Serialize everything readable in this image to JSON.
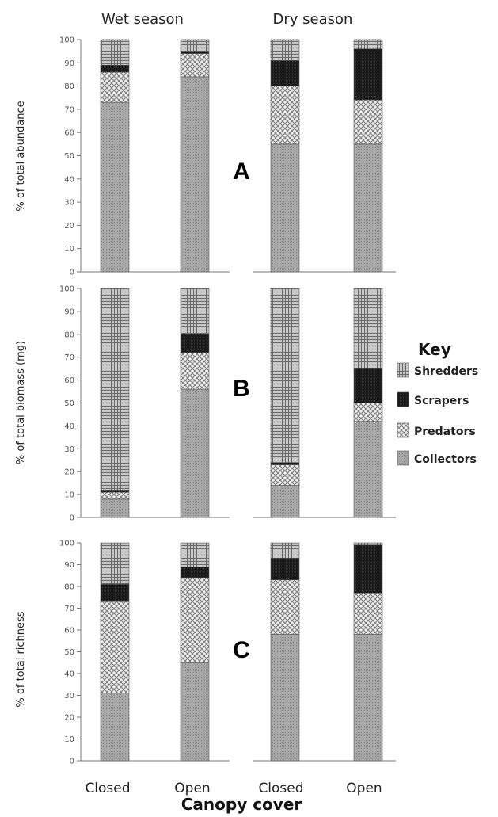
{
  "figure": {
    "season_labels": [
      "Wet season",
      "Dry season"
    ],
    "x_title": "Canopy cover",
    "key_title": "Key"
  },
  "chart_data": [
    {
      "type": "bar",
      "stacked": true,
      "panel_label": "A",
      "ylabel": "% of total abundance",
      "ylim": [
        0,
        100
      ],
      "yticks": [
        "0",
        "10",
        "20",
        "30",
        "40",
        "50",
        "60",
        "70",
        "80",
        "90",
        "100"
      ],
      "groups": [
        "Wet season",
        "Dry season"
      ],
      "categories": [
        "Closed",
        "Open",
        "Closed",
        "Open"
      ],
      "series": [
        {
          "name": "Collectors",
          "values": [
            73,
            84,
            55,
            55
          ]
        },
        {
          "name": "Predators",
          "values": [
            13,
            10,
            25,
            19
          ]
        },
        {
          "name": "Scrapers",
          "values": [
            3,
            1,
            11,
            22
          ]
        },
        {
          "name": "Shredders",
          "values": [
            11,
            5,
            9,
            4
          ]
        }
      ]
    },
    {
      "type": "bar",
      "stacked": true,
      "panel_label": "B",
      "ylabel": "% of total biomass (mg)",
      "ylim": [
        0,
        100
      ],
      "yticks": [
        "0",
        "10",
        "20",
        "30",
        "40",
        "50",
        "60",
        "70",
        "80",
        "90",
        "100"
      ],
      "groups": [
        "Wet season",
        "Dry season"
      ],
      "categories": [
        "Closed",
        "Open",
        "Closed",
        "Open"
      ],
      "series": [
        {
          "name": "Collectors",
          "values": [
            8,
            56,
            14,
            42
          ]
        },
        {
          "name": "Predators",
          "values": [
            3,
            16,
            9,
            8
          ]
        },
        {
          "name": "Scrapers",
          "values": [
            1,
            8,
            1,
            15
          ]
        },
        {
          "name": "Shredders",
          "values": [
            88,
            20,
            76,
            35
          ]
        }
      ]
    },
    {
      "type": "bar",
      "stacked": true,
      "panel_label": "C",
      "ylabel": "% of total richness",
      "ylim": [
        0,
        100
      ],
      "yticks": [
        "0",
        "10",
        "20",
        "30",
        "40",
        "50",
        "60",
        "70",
        "80",
        "90",
        "100"
      ],
      "groups": [
        "Wet season",
        "Dry season"
      ],
      "categories": [
        "Closed",
        "Open",
        "Closed",
        "Open"
      ],
      "series": [
        {
          "name": "Collectors",
          "values": [
            31,
            45,
            58,
            58
          ]
        },
        {
          "name": "Predators",
          "values": [
            42,
            39,
            25,
            19
          ]
        },
        {
          "name": "Scrapers",
          "values": [
            8,
            5,
            10,
            22
          ]
        },
        {
          "name": "Shredders",
          "values": [
            19,
            11,
            7,
            1
          ]
        }
      ]
    }
  ],
  "legend": {
    "placement": "right",
    "entries": [
      "Shredders",
      "Scrapers",
      "Predators",
      "Collectors"
    ]
  },
  "colors": {
    "Collectors": "#a3a3a3",
    "Predators": "#dcdcdc",
    "Scrapers": "#1a1a1a",
    "Shredders": "#8c8c8c",
    "axis": "#777777"
  }
}
